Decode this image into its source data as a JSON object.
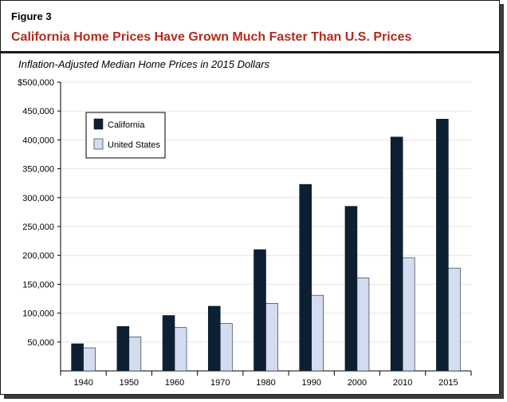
{
  "figure": {
    "label": "Figure 3",
    "title": "California Home Prices Have Grown Much Faster Than U.S. Prices",
    "subtitle": "Inflation-Adjusted Median Home Prices in 2015 Dollars"
  },
  "colors": {
    "title": "#b52a1c",
    "california": "#0d1f33",
    "united_states": "#d4dcf0"
  },
  "chart_data": {
    "type": "bar",
    "title": "Inflation-Adjusted Median Home Prices in 2015 Dollars",
    "xlabel": "",
    "ylabel": "",
    "categories": [
      "1940",
      "1950",
      "1960",
      "1970",
      "1980",
      "1990",
      "2000",
      "2010",
      "2015"
    ],
    "series": [
      {
        "name": "California",
        "values": [
          47000,
          77000,
          96000,
          112000,
          210000,
          323000,
          285000,
          405000,
          436000
        ]
      },
      {
        "name": "United States",
        "values": [
          40000,
          59000,
          75000,
          82000,
          117000,
          131000,
          161000,
          196000,
          178000
        ]
      }
    ],
    "ylim": [
      0,
      500000
    ],
    "yticks": [
      50000,
      100000,
      150000,
      200000,
      250000,
      300000,
      350000,
      400000,
      450000,
      500000
    ],
    "ytick_labels": [
      "50,000",
      "100,000",
      "150,000",
      "200,000",
      "250,000",
      "300,000",
      "350,000",
      "400,000",
      "450,000",
      "$500,000"
    ],
    "grid": true,
    "legend_position": "top-left"
  }
}
